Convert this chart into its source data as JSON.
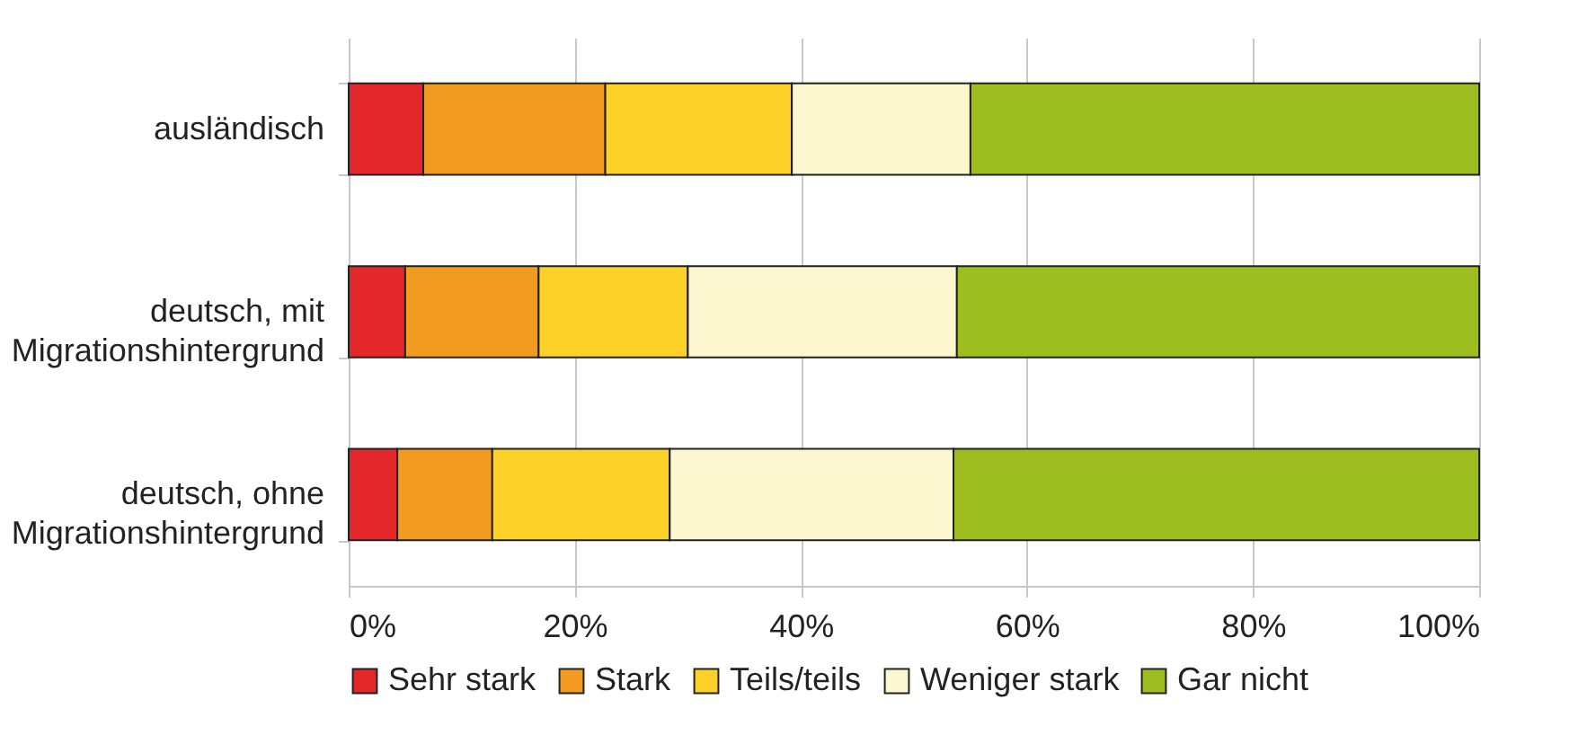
{
  "chart_data": {
    "type": "bar",
    "orientation": "horizontal",
    "stacked": true,
    "categories": [
      "ausländisch",
      "deutsch, mit Migrationshintergrund",
      "deutsch, ohne Migrationshintergrund"
    ],
    "series": [
      {
        "name": "Sehr stark",
        "color": "#e3272a",
        "values": [
          6.6,
          5.0,
          4.3
        ]
      },
      {
        "name": "Stark",
        "color": "#f39a21",
        "values": [
          16.1,
          11.8,
          8.4
        ]
      },
      {
        "name": "Teils/teils",
        "color": "#fdd127",
        "values": [
          16.5,
          13.2,
          15.7
        ]
      },
      {
        "name": "Weniger stark",
        "color": "#fdf7d0",
        "values": [
          15.8,
          23.8,
          25.1
        ]
      },
      {
        "name": "Gar nicht",
        "color": "#9dbe1e",
        "values": [
          45.0,
          46.2,
          46.5
        ]
      }
    ],
    "xlim": [
      0,
      100
    ],
    "xticks": [
      {
        "value": 0,
        "label": "0%"
      },
      {
        "value": 20,
        "label": "20%"
      },
      {
        "value": 40,
        "label": "40%"
      },
      {
        "value": 60,
        "label": "60%"
      },
      {
        "value": 80,
        "label": "80%"
      },
      {
        "value": 100,
        "label": "100%"
      }
    ],
    "grid": "x",
    "legend": "bottom"
  }
}
